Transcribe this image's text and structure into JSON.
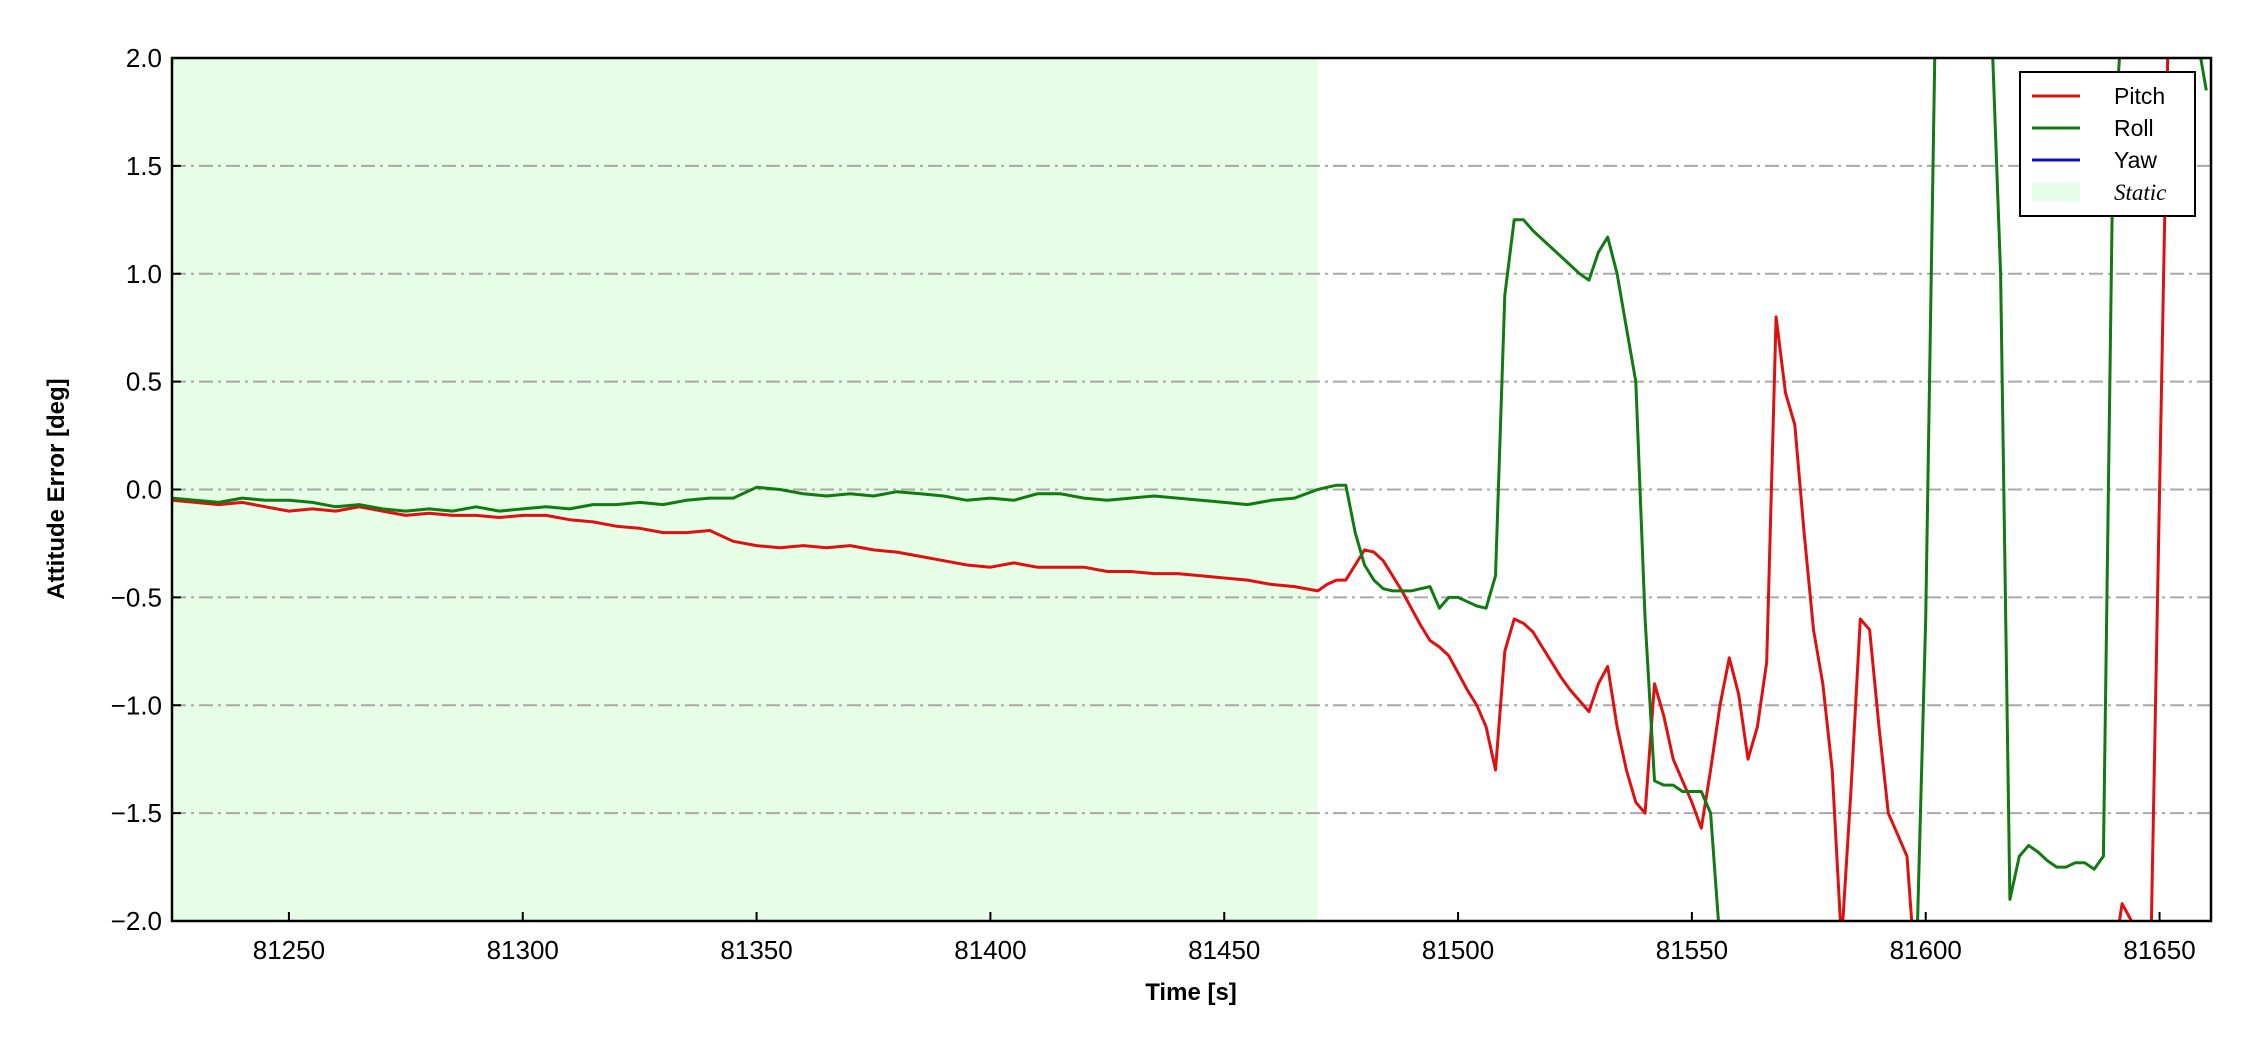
{
  "chart_data": {
    "type": "line",
    "xlabel": "Time [s]",
    "ylabel": "Attitude Error [deg]",
    "xlim": [
      81225,
      81661
    ],
    "ylim": [
      -2,
      2
    ],
    "xticks": [
      81250,
      81300,
      81350,
      81400,
      81450,
      81500,
      81550,
      81600,
      81650
    ],
    "yticks": [
      {
        "value": -2,
        "label": "−2.0"
      },
      {
        "value": -1.5,
        "label": "−1.5"
      },
      {
        "value": -1,
        "label": "−1.0"
      },
      {
        "value": -0.5,
        "label": "−0.5"
      },
      {
        "value": 0,
        "label": "0.0"
      },
      {
        "value": 0.5,
        "label": "0.5"
      },
      {
        "value": 1,
        "label": "1.0"
      },
      {
        "value": 1.5,
        "label": "1.5"
      },
      {
        "value": 2,
        "label": "2.0"
      }
    ],
    "grid": true,
    "legend": "upper right",
    "shaded": {
      "name": "Static",
      "x": [
        81225,
        81470
      ],
      "color": "#e6fde6"
    },
    "x": [
      81225,
      81230,
      81235,
      81240,
      81245,
      81250,
      81255,
      81260,
      81265,
      81270,
      81275,
      81280,
      81285,
      81290,
      81295,
      81300,
      81305,
      81310,
      81315,
      81320,
      81325,
      81330,
      81335,
      81340,
      81345,
      81350,
      81355,
      81360,
      81365,
      81370,
      81375,
      81380,
      81385,
      81390,
      81395,
      81400,
      81405,
      81410,
      81415,
      81420,
      81425,
      81430,
      81435,
      81440,
      81445,
      81450,
      81455,
      81460,
      81465,
      81470,
      81472,
      81474,
      81476,
      81478,
      81480,
      81482,
      81484,
      81486,
      81488,
      81490,
      81492,
      81494,
      81496,
      81498,
      81500,
      81502,
      81504,
      81506,
      81508,
      81510,
      81512,
      81514,
      81516,
      81518,
      81520,
      81522,
      81524,
      81526,
      81528,
      81530,
      81532,
      81534,
      81536,
      81538,
      81540,
      81542,
      81544,
      81546,
      81548,
      81550,
      81552,
      81554,
      81556,
      81558,
      81560,
      81562,
      81564,
      81566,
      81568,
      81570,
      81572,
      81574,
      81576,
      81578,
      81580,
      81582,
      81584,
      81586,
      81588,
      81590,
      81592,
      81594,
      81596,
      81598,
      81600,
      81602,
      81604,
      81606,
      81608,
      81610,
      81612,
      81614,
      81616,
      81618,
      81620,
      81622,
      81624,
      81626,
      81628,
      81630,
      81632,
      81634,
      81636,
      81638,
      81640,
      81642,
      81644,
      81646,
      81648,
      81650,
      81652,
      81654,
      81656,
      81658,
      81660
    ],
    "series": [
      {
        "name": "Pitch",
        "color": "#e01010",
        "values": [
          -0.05,
          -0.06,
          -0.07,
          -0.06,
          -0.08,
          -0.1,
          -0.09,
          -0.1,
          -0.08,
          -0.1,
          -0.12,
          -0.11,
          -0.12,
          -0.12,
          -0.13,
          -0.12,
          -0.12,
          -0.14,
          -0.15,
          -0.17,
          -0.18,
          -0.2,
          -0.2,
          -0.19,
          -0.24,
          -0.26,
          -0.27,
          -0.26,
          -0.27,
          -0.26,
          -0.28,
          -0.29,
          -0.31,
          -0.33,
          -0.35,
          -0.36,
          -0.34,
          -0.36,
          -0.36,
          -0.36,
          -0.38,
          -0.38,
          -0.39,
          -0.39,
          -0.4,
          -0.41,
          -0.42,
          -0.44,
          -0.45,
          -0.47,
          -0.44,
          -0.42,
          -0.42,
          -0.35,
          -0.28,
          -0.29,
          -0.33,
          -0.4,
          -0.47,
          -0.55,
          -0.63,
          -0.7,
          -0.73,
          -0.77,
          -0.85,
          -0.93,
          -1.0,
          -1.1,
          -1.3,
          -0.75,
          -0.6,
          -0.62,
          -0.66,
          -0.73,
          -0.8,
          -0.87,
          -0.93,
          -0.98,
          -1.03,
          -0.9,
          -0.82,
          -1.1,
          -1.3,
          -1.45,
          -1.5,
          -0.9,
          -1.05,
          -1.25,
          -1.35,
          -1.45,
          -1.57,
          -1.3,
          -1.0,
          -0.78,
          -0.95,
          -1.25,
          -1.1,
          -0.8,
          0.8,
          0.45,
          0.3,
          -0.2,
          -0.65,
          -0.9,
          -1.3,
          -2.1,
          -1.4,
          -0.6,
          -0.65,
          -1.1,
          -1.5,
          -1.6,
          -1.7,
          -2.3,
          null,
          null,
          null,
          null,
          null,
          null,
          null,
          null,
          null,
          null,
          null,
          null,
          null,
          null,
          null,
          null,
          null,
          null,
          null,
          null,
          -2.2,
          -1.92,
          -2.0,
          -2.2,
          -2.3,
          0.0,
          2.3,
          null,
          null,
          null,
          null
        ]
      },
      {
        "name": "Roll",
        "color": "#117a11",
        "values": [
          -0.04,
          -0.05,
          -0.06,
          -0.04,
          -0.05,
          -0.05,
          -0.06,
          -0.08,
          -0.07,
          -0.09,
          -0.1,
          -0.09,
          -0.1,
          -0.08,
          -0.1,
          -0.09,
          -0.08,
          -0.09,
          -0.07,
          -0.07,
          -0.06,
          -0.07,
          -0.05,
          -0.04,
          -0.04,
          0.01,
          0.0,
          -0.02,
          -0.03,
          -0.02,
          -0.03,
          -0.01,
          -0.02,
          -0.03,
          -0.05,
          -0.04,
          -0.05,
          -0.02,
          -0.02,
          -0.04,
          -0.05,
          -0.04,
          -0.03,
          -0.04,
          -0.05,
          -0.06,
          -0.07,
          -0.05,
          -0.04,
          0.0,
          0.01,
          0.02,
          0.02,
          -0.2,
          -0.35,
          -0.42,
          -0.46,
          -0.47,
          -0.47,
          -0.47,
          -0.46,
          -0.45,
          -0.55,
          -0.5,
          -0.5,
          -0.52,
          -0.54,
          -0.55,
          -0.4,
          0.9,
          1.25,
          1.25,
          1.2,
          1.16,
          1.12,
          1.08,
          1.04,
          1.0,
          0.97,
          1.1,
          1.17,
          1.0,
          0.75,
          0.5,
          -0.6,
          -1.35,
          -1.37,
          -1.37,
          -1.4,
          -1.4,
          -1.4,
          -1.5,
          -2.1,
          null,
          null,
          null,
          null,
          null,
          null,
          null,
          null,
          null,
          null,
          null,
          null,
          null,
          null,
          null,
          null,
          null,
          null,
          null,
          null,
          -2.2,
          -0.6,
          2.1,
          null,
          null,
          null,
          null,
          null,
          2.2,
          1.0,
          -1.9,
          -1.7,
          -1.65,
          -1.68,
          -1.72,
          -1.75,
          -1.75,
          -1.73,
          -1.73,
          -1.76,
          -1.7,
          1.5,
          2.2,
          null,
          null,
          null,
          null,
          null,
          null,
          null,
          2.1,
          1.85
        ]
      },
      {
        "name": "Yaw",
        "color": "#1010c0",
        "values": [
          null,
          null,
          null,
          null,
          null,
          null,
          null,
          null,
          null,
          null,
          null,
          null,
          null,
          null,
          null,
          null,
          null,
          null,
          null,
          null,
          null,
          null,
          null,
          null,
          null,
          null,
          null,
          null,
          null,
          null,
          null,
          null,
          null,
          null,
          null,
          null,
          null,
          null,
          null,
          null,
          null,
          null,
          null,
          null,
          null,
          null,
          null,
          null,
          null,
          null,
          null,
          null,
          null,
          null,
          null,
          null,
          null,
          null,
          null,
          null,
          null,
          null,
          null,
          null,
          null,
          null,
          null,
          null,
          null,
          null,
          null,
          null,
          null,
          null,
          null,
          null,
          null,
          null,
          null,
          null,
          null,
          null,
          null,
          null,
          null,
          null,
          null,
          null,
          null,
          null,
          null,
          null,
          null,
          null,
          null,
          null,
          null,
          null,
          null,
          null,
          null,
          null,
          null,
          null,
          null,
          null,
          null,
          null,
          null,
          null,
          null,
          null,
          null,
          null,
          null,
          null,
          null,
          null,
          null,
          null,
          null,
          null,
          null,
          null,
          null,
          null,
          null,
          null,
          null,
          null,
          null,
          null,
          null,
          null,
          null,
          null,
          null,
          null,
          null,
          null,
          null,
          null,
          null,
          null,
          null
        ]
      }
    ]
  }
}
